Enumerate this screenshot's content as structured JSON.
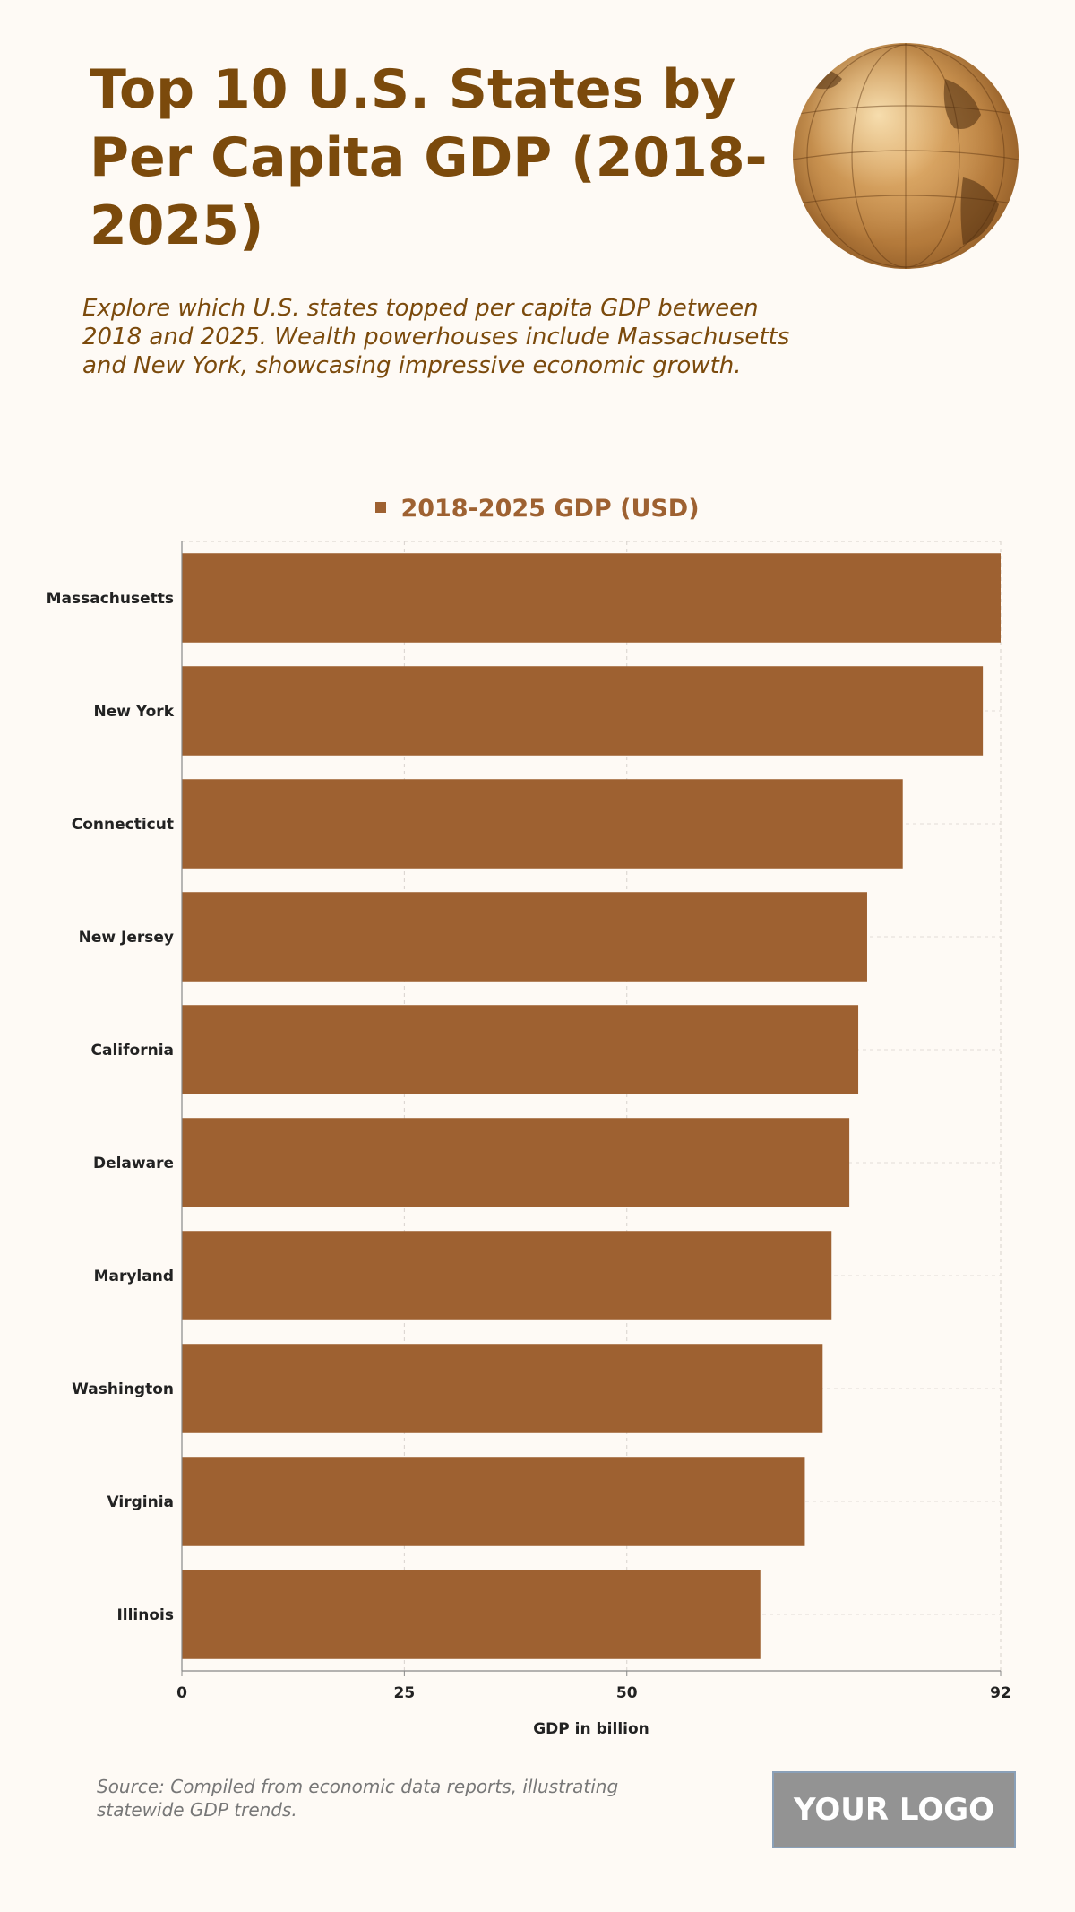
{
  "header": {
    "title": "Top 10 U.S. States by Per Capita GDP (2018-2025)",
    "subtitle": "Explore which U.S. states topped per capita GDP between 2018 and 2025. Wealth powerhouses include Massachusetts and New York, showcasing impressive economic growth."
  },
  "footer": {
    "source": "Source: Compiled from economic data reports, illustrating statewide GDP trends.",
    "logo_text": "YOUR LOGO"
  },
  "colors": {
    "bar": "#9e6131",
    "title": "#7b4a0c",
    "background": "#fefaf5"
  },
  "chart_data": {
    "type": "bar",
    "orientation": "horizontal",
    "categories": [
      "Massachusetts",
      "New York",
      "Connecticut",
      "New Jersey",
      "California",
      "Delaware",
      "Maryland",
      "Washington",
      "Virginia",
      "Illinois"
    ],
    "series": [
      {
        "name": "2018-2025 GDP (USD)",
        "values": [
          92,
          90,
          81,
          77,
          76,
          75,
          73,
          72,
          70,
          65
        ]
      }
    ],
    "xlabel": "GDP in billion",
    "ylabel": "",
    "xlim": [
      0,
      92
    ],
    "xticks": [
      0,
      25,
      50,
      92
    ],
    "grid": true,
    "legend": "top-center"
  }
}
